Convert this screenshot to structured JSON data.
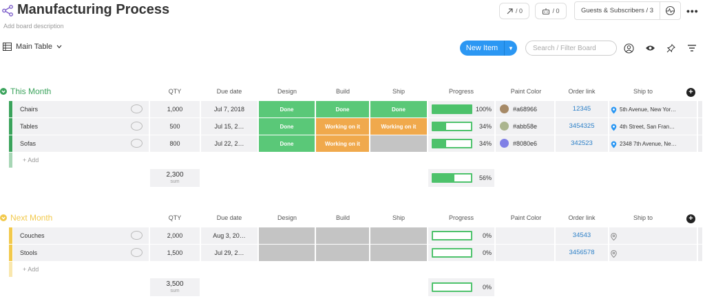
{
  "board": {
    "title": "Manufacturing Process",
    "description": "Add board description",
    "activity_count": "/ 0",
    "integrations_count": "/ 0",
    "guests_label": "Guests & Subscribers / 3"
  },
  "toolbar": {
    "view_label": "Main Table",
    "new_item_label": "New Item",
    "search_placeholder": "Search / Filter Board"
  },
  "columns": [
    "QTY",
    "Due date",
    "Design",
    "Build",
    "Ship",
    "Progress",
    "Paint Color",
    "Order link",
    "Ship to"
  ],
  "colors": {
    "done": "#5ac878",
    "working": "#f0a94c",
    "empty": "#c4c4c4",
    "this_month": "#3ba35c",
    "next_month": "#f2c94c"
  },
  "groups": [
    {
      "title": "This Month",
      "rows": [
        {
          "name": "Chairs",
          "qty": "1,000",
          "due": "Jul 7, 2018",
          "design": "Done",
          "build": "Done",
          "ship": "Done",
          "progress": 100,
          "progress_label": "100%",
          "color": "#a68966",
          "color_label": "#a68966",
          "link": "12345",
          "ship_to": "5th Avenue, New Yor…"
        },
        {
          "name": "Tables",
          "qty": "500",
          "due": "Jul 15, 2…",
          "design": "Done",
          "build": "Working on it",
          "ship": "Working on it",
          "progress": 34,
          "progress_label": "34%",
          "color": "#abb58e",
          "color_label": "#abb58e",
          "link": "3454325",
          "ship_to": "4th Street, San Fran…"
        },
        {
          "name": "Sofas",
          "qty": "800",
          "due": "Jul 22, 2…",
          "design": "Done",
          "build": "Working on it",
          "ship": "",
          "progress": 34,
          "progress_label": "34%",
          "color": "#8080e6",
          "color_label": "#8080e6",
          "link": "342523",
          "ship_to": "2348 7th Avenue, Ne…"
        }
      ],
      "add_label": "+ Add",
      "sum_qty": "2,300",
      "sum_label": "sum",
      "sum_progress": 56,
      "sum_progress_label": "56%"
    },
    {
      "title": "Next Month",
      "rows": [
        {
          "name": "Couches",
          "qty": "2,000",
          "due": "Aug 3, 20…",
          "design": "",
          "build": "",
          "ship": "",
          "progress": 0,
          "progress_label": "0%",
          "link": "34543"
        },
        {
          "name": "Stools",
          "qty": "1,500",
          "due": "Jul 29, 2…",
          "design": "",
          "build": "",
          "ship": "",
          "progress": 0,
          "progress_label": "0%",
          "link": "3456578"
        }
      ],
      "add_label": "+ Add",
      "sum_qty": "3,500",
      "sum_label": "sum",
      "sum_progress": 0,
      "sum_progress_label": "0%"
    }
  ]
}
